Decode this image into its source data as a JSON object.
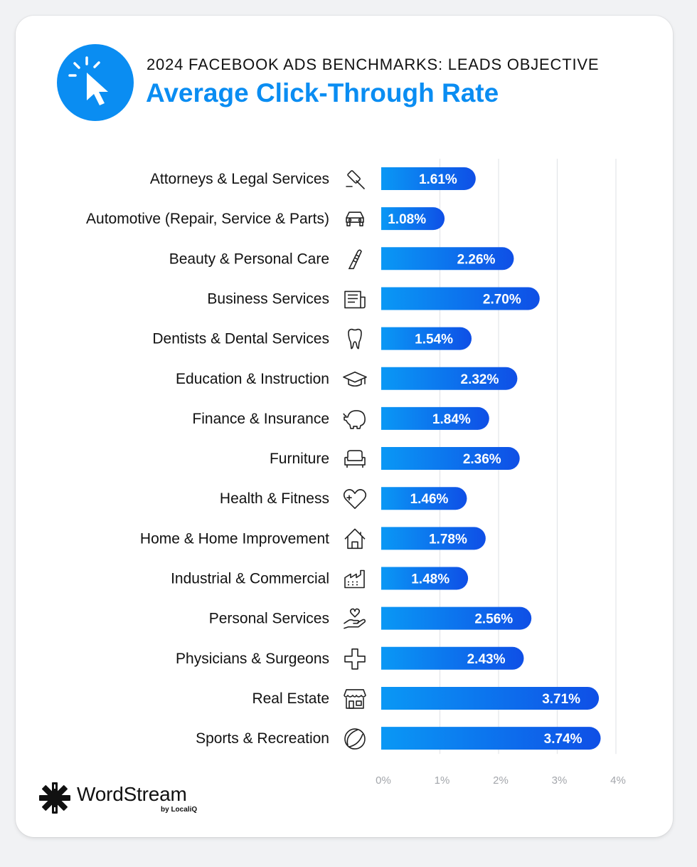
{
  "header": {
    "supertitle": "2024 FACEBOOK ADS BENCHMARKS: LEADS OBJECTIVE",
    "title": "Average Click-Through Rate",
    "icon": "cursor-click-icon"
  },
  "colors": {
    "accent": "#0a8df2",
    "bar_start": "#0a98f5",
    "bar_end": "#0f4fe6",
    "grid": "#e3e5e8",
    "tick": "#a3a6ab",
    "label": "#111111"
  },
  "chart_data": {
    "type": "bar",
    "orientation": "horizontal",
    "categories": [
      "Attorneys & Legal Services",
      "Automotive (Repair, Service & Parts)",
      "Beauty & Personal Care",
      "Business Services",
      "Dentists & Dental Services",
      "Education & Instruction",
      "Finance & Insurance",
      "Furniture",
      "Health & Fitness",
      "Home & Home Improvement",
      "Industrial & Commercial",
      "Personal Services",
      "Physicians & Surgeons",
      "Real Estate",
      "Sports & Recreation"
    ],
    "category_icons": [
      "gavel-icon",
      "car-icon",
      "comb-icon",
      "newspaper-icon",
      "tooth-icon",
      "graduation-cap-icon",
      "piggy-bank-icon",
      "armchair-icon",
      "heart-plus-icon",
      "house-icon",
      "factory-icon",
      "hand-heart-icon",
      "medical-cross-icon",
      "storefront-icon",
      "ball-icon"
    ],
    "values": [
      1.61,
      1.08,
      2.26,
      2.7,
      1.54,
      2.32,
      1.84,
      2.36,
      1.46,
      1.78,
      1.48,
      2.56,
      2.43,
      3.71,
      3.74
    ],
    "data_labels": [
      "1.61%",
      "1.08%",
      "2.26%",
      "2.70%",
      "1.54%",
      "2.32%",
      "1.84%",
      "2.36%",
      "1.46%",
      "1.78%",
      "1.48%",
      "2.56%",
      "2.43%",
      "3.71%",
      "3.74%"
    ],
    "x_ticks": [
      "0%",
      "1%",
      "2%",
      "3%",
      "4%"
    ],
    "xlim": [
      0,
      4
    ],
    "grid": true,
    "unit": "%"
  },
  "brand": {
    "name": "WordStream",
    "sub": "by LocaliQ",
    "icon": "wordstream-logo-icon"
  }
}
